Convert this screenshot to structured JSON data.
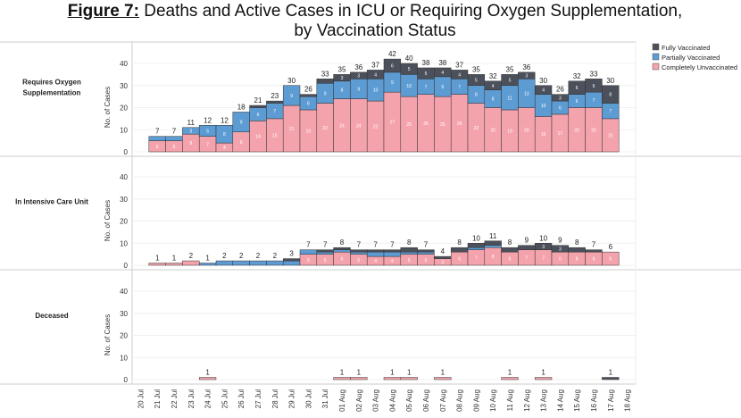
{
  "title_prefix": "Figure 7:",
  "title_line1": "Deaths and Active Cases in ICU or Requiring Oxygen Supplementation,",
  "title_line2": "by Vaccination Status",
  "chart_data": {
    "type": "bar",
    "stacked": true,
    "categories": [
      "20 Jul",
      "21 Jul",
      "22 Jul",
      "23 Jul",
      "24 Jul",
      "25 Jul",
      "26 Jul",
      "27 Jul",
      "28 Jul",
      "29 Jul",
      "30 Jul",
      "31 Jul",
      "01 Aug",
      "02 Aug",
      "03 Aug",
      "04 Aug",
      "05 Aug",
      "06 Aug",
      "07 Aug",
      "08 Aug",
      "09 Aug",
      "10 Aug",
      "11 Aug",
      "12 Aug",
      "13 Aug",
      "14 Aug",
      "15 Aug",
      "16 Aug",
      "17 Aug",
      "18 Aug"
    ],
    "ylabel": "No. of Cases",
    "ylim": [
      0,
      45
    ],
    "yticks": [
      0,
      10,
      20,
      30,
      40
    ],
    "legend": {
      "position": "top-right",
      "entries": [
        "Fully Vaccinated",
        "Partially Vaccinated",
        "Completely Unvaccinated"
      ]
    },
    "colors": {
      "Completely Unvaccinated": "#f4a3ad",
      "Partially Vaccinated": "#5d9bd3",
      "Fully Vaccinated": "#4b505b"
    },
    "panels": [
      {
        "label": "Requires Oxygen Supplementation",
        "series": [
          {
            "name": "Completely Unvaccinated",
            "values": [
              null,
              5,
              5,
              8,
              7,
              4,
              9,
              14,
              15,
              21,
              19,
              22,
              24,
              24,
              23,
              27,
              25,
              26,
              25,
              26,
              22,
              20,
              19,
              20,
              16,
              17,
              20,
              20,
              15,
              null
            ]
          },
          {
            "name": "Partially Vaccinated",
            "values": [
              null,
              2,
              2,
              3,
              5,
              8,
              9,
              6,
              7,
              9,
              6,
              9,
              8,
              9,
              10,
              9,
              10,
              7,
              9,
              7,
              8,
              8,
              11,
              13,
              10,
              6,
              6,
              7,
              7,
              null
            ]
          },
          {
            "name": "Fully Vaccinated",
            "values": [
              null,
              0,
              0,
              0,
              0,
              0,
              0,
              1,
              1,
              0,
              1,
              2,
              3,
              3,
              4,
              6,
              5,
              5,
              4,
              4,
              5,
              4,
              5,
              3,
              4,
              3,
              6,
              6,
              8,
              null
            ]
          }
        ],
        "totals": [
          null,
          7,
          7,
          11,
          12,
          12,
          18,
          21,
          23,
          30,
          26,
          33,
          35,
          36,
          37,
          42,
          40,
          38,
          38,
          37,
          35,
          32,
          35,
          36,
          30,
          26,
          32,
          33,
          30,
          null
        ]
      },
      {
        "label": "In Intensive Care Unit",
        "series": [
          {
            "name": "Completely Unvaccinated",
            "values": [
              null,
              1,
              1,
              2,
              0,
              0,
              0,
              0,
              0,
              0,
              5,
              5,
              6,
              5,
              4,
              4,
              5,
              5,
              3,
              6,
              7,
              8,
              6,
              7,
              7,
              6,
              6,
              6,
              6,
              null
            ]
          },
          {
            "name": "Partially Vaccinated",
            "values": [
              null,
              0,
              0,
              0,
              1,
              2,
              2,
              2,
              2,
              2,
              2,
              1,
              1,
              1,
              2,
              2,
              1,
              1,
              0,
              0,
              1,
              1,
              0,
              0,
              0,
              0,
              0,
              0,
              0,
              null
            ]
          },
          {
            "name": "Fully Vaccinated",
            "values": [
              null,
              0,
              0,
              0,
              0,
              0,
              0,
              0,
              0,
              1,
              0,
              1,
              1,
              1,
              1,
              1,
              2,
              1,
              1,
              2,
              2,
              2,
              2,
              2,
              3,
              3,
              2,
              1,
              0,
              null
            ]
          }
        ],
        "totals": [
          null,
          1,
          1,
          2,
          1,
          2,
          2,
          2,
          2,
          3,
          7,
          7,
          8,
          7,
          7,
          7,
          8,
          7,
          4,
          8,
          10,
          11,
          8,
          9,
          10,
          9,
          8,
          7,
          6,
          null
        ]
      },
      {
        "label": "Deceased",
        "series": [
          {
            "name": "Completely Unvaccinated",
            "values": [
              null,
              0,
              0,
              0,
              1,
              0,
              0,
              0,
              0,
              0,
              0,
              0,
              1,
              1,
              0,
              1,
              1,
              0,
              1,
              0,
              0,
              0,
              1,
              0,
              1,
              0,
              0,
              0,
              0,
              null
            ]
          },
          {
            "name": "Partially Vaccinated",
            "values": [
              null,
              0,
              0,
              0,
              0,
              0,
              0,
              0,
              0,
              0,
              0,
              0,
              0,
              0,
              0,
              0,
              0,
              0,
              0,
              0,
              0,
              0,
              0,
              0,
              0,
              0,
              0,
              0,
              0,
              null
            ]
          },
          {
            "name": "Fully Vaccinated",
            "values": [
              null,
              0,
              0,
              0,
              0,
              0,
              0,
              0,
              0,
              0,
              0,
              0,
              0,
              0,
              0,
              0,
              0,
              0,
              0,
              0,
              0,
              0,
              0,
              0,
              0,
              0,
              0,
              0,
              1,
              null
            ]
          }
        ],
        "totals": [
          null,
          null,
          null,
          null,
          1,
          null,
          null,
          null,
          null,
          null,
          null,
          null,
          1,
          1,
          null,
          1,
          1,
          null,
          1,
          null,
          null,
          null,
          1,
          null,
          1,
          null,
          null,
          null,
          1,
          null
        ]
      }
    ]
  }
}
